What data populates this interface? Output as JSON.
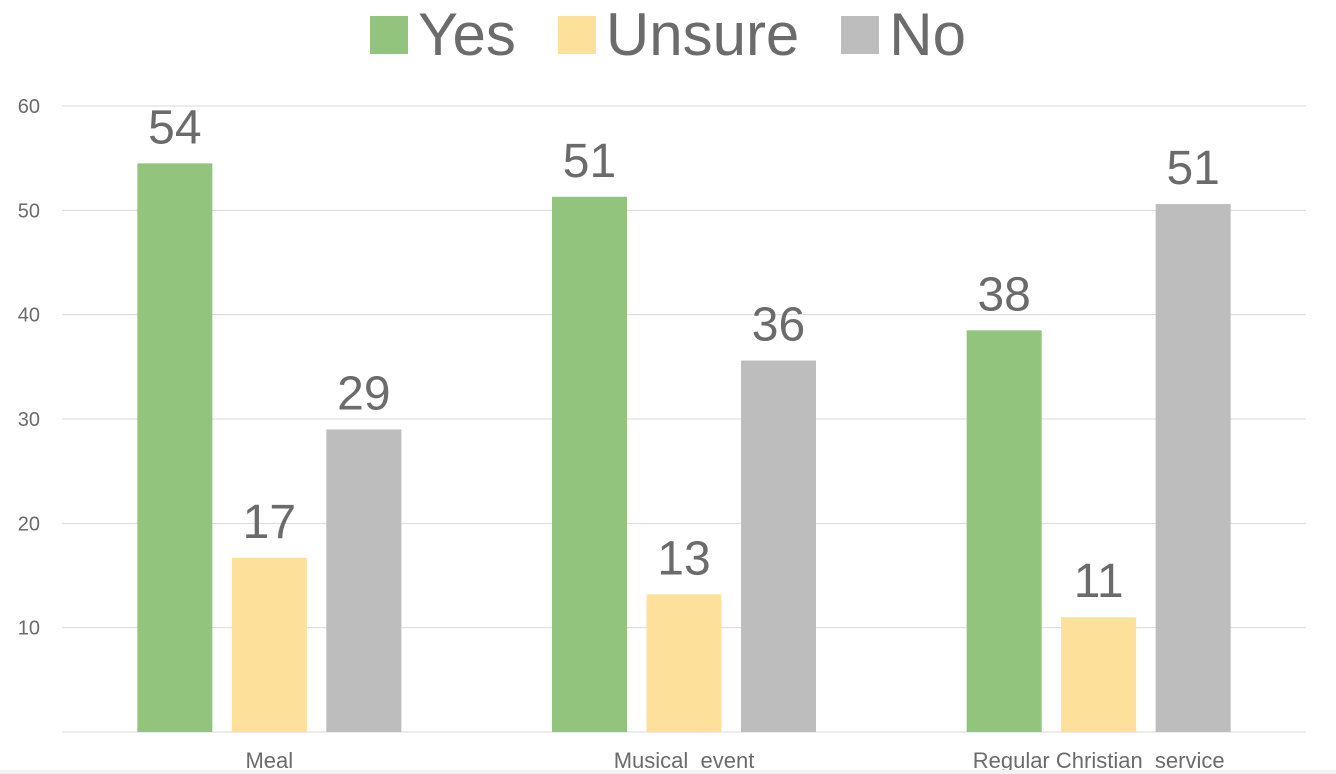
{
  "chart_data": {
    "type": "bar",
    "title": "",
    "xlabel": "",
    "ylabel": "",
    "categories": [
      "Meal",
      "Musical  event",
      "Regular Christian  service"
    ],
    "series": [
      {
        "name": "Yes",
        "color": "#93c47d",
        "values": [
          54.5,
          51.3,
          38.5
        ],
        "labels": [
          "54",
          "51",
          "38"
        ]
      },
      {
        "name": "Unsure",
        "color": "#fde19a",
        "values": [
          16.7,
          13.2,
          11.0
        ],
        "labels": [
          "17",
          "13",
          "11"
        ]
      },
      {
        "name": "No",
        "color": "#bdbdbd",
        "values": [
          29.0,
          35.6,
          50.6
        ],
        "labels": [
          "29",
          "36",
          "51"
        ]
      }
    ],
    "ylim": [
      0,
      60
    ],
    "yticks": [
      10,
      20,
      30,
      40,
      50,
      60
    ],
    "ytick_labels": [
      "10",
      "20",
      "30",
      "40",
      "50",
      "60"
    ],
    "grid": true,
    "legend_position": "top-center"
  }
}
